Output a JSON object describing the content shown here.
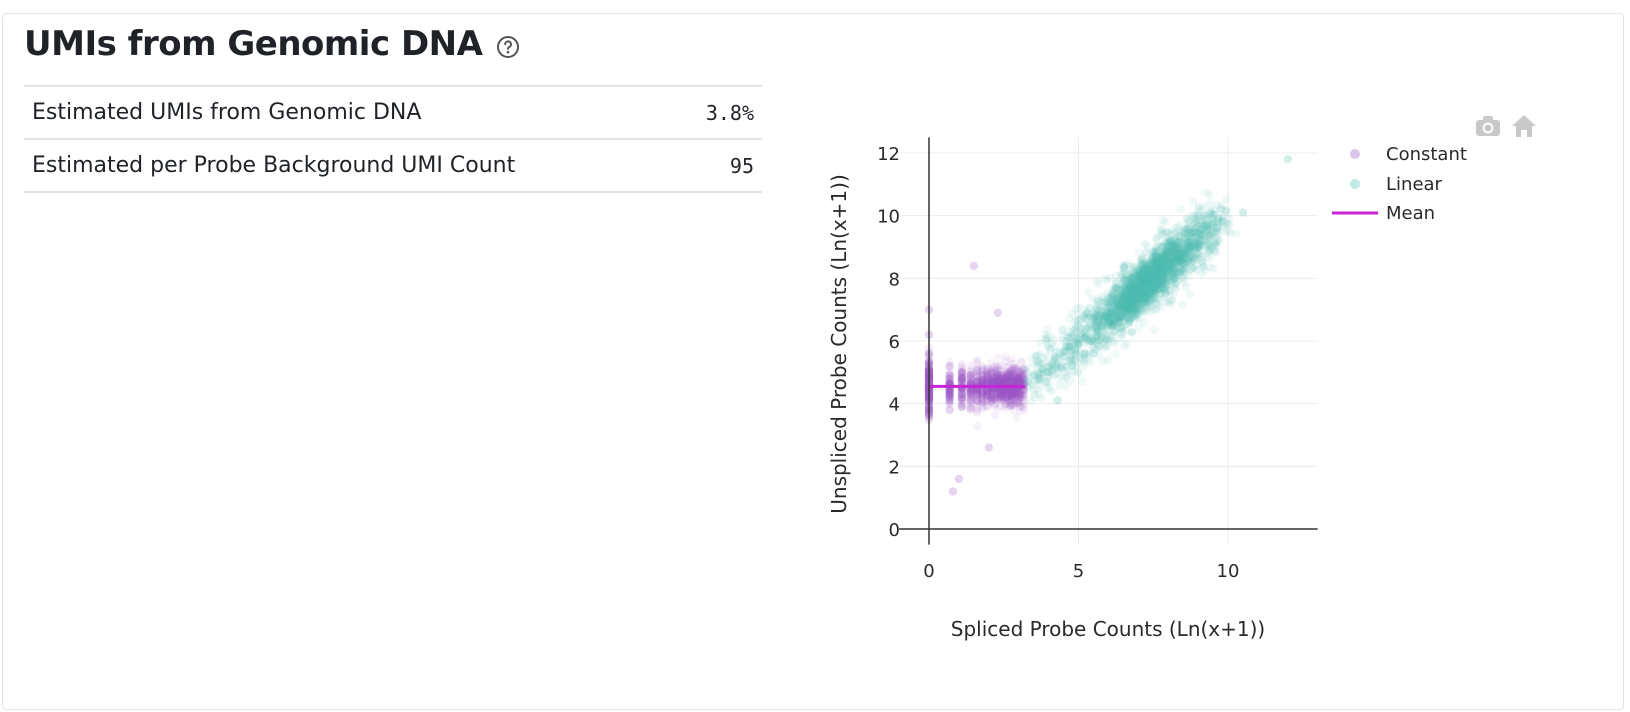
{
  "header": {
    "title": "UMIs from Genomic DNA"
  },
  "metrics": [
    {
      "label": "Estimated UMIs from Genomic DNA",
      "value": "3.8%"
    },
    {
      "label": "Estimated per Probe Background UMI Count",
      "value": "95"
    }
  ],
  "modebar": {
    "icons": [
      "camera-icon",
      "home-icon"
    ]
  },
  "chart_data": {
    "type": "scatter",
    "xlabel": "Spliced Probe Counts (Ln(x+1))",
    "ylabel": "Unspliced Probe Counts (Ln(x+1))",
    "xlim": [
      -1,
      13
    ],
    "ylim": [
      -0.5,
      12.5
    ],
    "xticks": [
      0,
      5,
      10
    ],
    "yticks": [
      0,
      2,
      4,
      6,
      8,
      10,
      12
    ],
    "grid": true,
    "legend_position": "top-right",
    "colors": {
      "constant": "#9b59c9",
      "linear": "#4fbfb3",
      "mean": "#c724d6"
    },
    "series": [
      {
        "name": "Constant",
        "kind": "points",
        "description_range": {
          "x": [
            0,
            3.2
          ],
          "y": [
            3.5,
            5.5
          ]
        },
        "points": [
          [
            0,
            4.6
          ],
          [
            0,
            4.4
          ],
          [
            0,
            4.8
          ],
          [
            0,
            4.2
          ],
          [
            0,
            5.0
          ],
          [
            0,
            3.9
          ],
          [
            0,
            5.3
          ],
          [
            0,
            4.5
          ],
          [
            0,
            6.2
          ],
          [
            0,
            3.6
          ],
          [
            0,
            7.0
          ],
          [
            0.69,
            4.6
          ],
          [
            0.69,
            4.3
          ],
          [
            0.69,
            4.9
          ],
          [
            0.69,
            4.1
          ],
          [
            0.69,
            5.2
          ],
          [
            0.69,
            3.8
          ],
          [
            1.1,
            4.5
          ],
          [
            1.1,
            4.8
          ],
          [
            1.1,
            4.2
          ],
          [
            1.1,
            5.0
          ],
          [
            1.1,
            3.9
          ],
          [
            1.39,
            4.6
          ],
          [
            1.39,
            4.3
          ],
          [
            1.39,
            4.9
          ],
          [
            1.61,
            4.5
          ],
          [
            1.61,
            4.7
          ],
          [
            1.61,
            4.1
          ],
          [
            1.79,
            4.6
          ],
          [
            1.79,
            4.9
          ],
          [
            1.95,
            4.4
          ],
          [
            2.08,
            4.7
          ],
          [
            2.2,
            4.5
          ],
          [
            2.3,
            4.8
          ],
          [
            2.4,
            4.3
          ],
          [
            2.5,
            4.6
          ],
          [
            2.6,
            4.9
          ],
          [
            2.7,
            4.4
          ],
          [
            2.8,
            4.7
          ],
          [
            2.9,
            4.5
          ],
          [
            3.0,
            4.8
          ],
          [
            3.1,
            4.6
          ],
          [
            1.5,
            8.4
          ],
          [
            2.3,
            6.9
          ],
          [
            1.0,
            1.6
          ],
          [
            0.8,
            1.2
          ],
          [
            2.0,
            2.6
          ]
        ]
      },
      {
        "name": "Linear",
        "kind": "points",
        "description_range": {
          "x": [
            3.2,
            10
          ],
          "y": [
            4,
            10
          ]
        },
        "points": [
          [
            3.3,
            4.7
          ],
          [
            3.5,
            4.9
          ],
          [
            3.8,
            5.1
          ],
          [
            4.0,
            5.0
          ],
          [
            4.2,
            5.4
          ],
          [
            4.5,
            5.5
          ],
          [
            4.7,
            5.8
          ],
          [
            5.0,
            5.9
          ],
          [
            5.2,
            6.1
          ],
          [
            5.4,
            6.0
          ],
          [
            5.6,
            6.4
          ],
          [
            5.8,
            6.5
          ],
          [
            6.0,
            6.7
          ],
          [
            6.1,
            6.9
          ],
          [
            6.3,
            7.0
          ],
          [
            6.5,
            7.2
          ],
          [
            6.6,
            7.4
          ],
          [
            6.8,
            7.3
          ],
          [
            7.0,
            7.6
          ],
          [
            7.1,
            7.8
          ],
          [
            7.3,
            7.7
          ],
          [
            7.5,
            8.0
          ],
          [
            7.6,
            8.2
          ],
          [
            7.8,
            8.1
          ],
          [
            8.0,
            8.4
          ],
          [
            8.1,
            8.6
          ],
          [
            8.3,
            8.5
          ],
          [
            8.5,
            8.8
          ],
          [
            8.7,
            9.0
          ],
          [
            8.9,
            9.1
          ],
          [
            9.1,
            9.4
          ],
          [
            9.3,
            9.6
          ],
          [
            9.5,
            9.8
          ],
          [
            9.7,
            9.9
          ],
          [
            6.2,
            6.3
          ],
          [
            6.9,
            7.0
          ],
          [
            7.4,
            7.3
          ],
          [
            5.9,
            6.8
          ],
          [
            7.2,
            8.3
          ],
          [
            6.4,
            7.6
          ],
          [
            8.2,
            8.0
          ],
          [
            5.5,
            5.6
          ],
          [
            4.8,
            5.2
          ],
          [
            9.0,
            9.0
          ],
          [
            6.7,
            6.6
          ],
          [
            7.9,
            7.7
          ],
          [
            10.5,
            10.1
          ],
          [
            4.3,
            4.1
          ],
          [
            12.0,
            11.8
          ]
        ]
      },
      {
        "name": "Mean",
        "kind": "line",
        "x": [
          0,
          3.2
        ],
        "y": [
          4.55,
          4.55
        ]
      }
    ]
  }
}
